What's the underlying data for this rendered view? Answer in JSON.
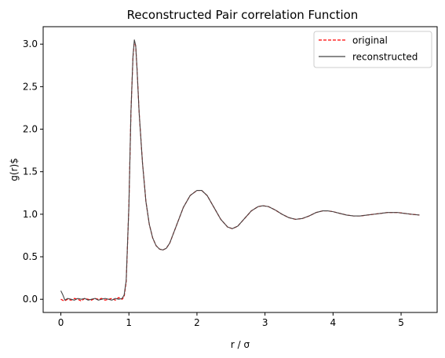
{
  "chart_data": {
    "type": "line",
    "title": "Reconstructed Pair correlation Function",
    "xlabel": "r / σ",
    "ylabel": "g(r)$",
    "xlim": [
      -0.26,
      5.53
    ],
    "ylim": [
      -0.155,
      3.205
    ],
    "xticks": [
      0,
      1,
      2,
      3,
      4,
      5
    ],
    "xtick_labels": [
      "0",
      "1",
      "2",
      "3",
      "4",
      "5"
    ],
    "yticks": [
      0.0,
      0.5,
      1.0,
      1.5,
      2.0,
      2.5,
      3.0
    ],
    "ytick_labels": [
      "0.0",
      "0.5",
      "1.0",
      "1.5",
      "2.0",
      "2.5",
      "3.0"
    ],
    "grid": false,
    "legend_position": "top-right",
    "series": [
      {
        "name": "original",
        "color": "#ff0000",
        "style": "dashed",
        "x": [
          0.0,
          0.05,
          0.1,
          0.15,
          0.2,
          0.25,
          0.3,
          0.35,
          0.4,
          0.45,
          0.5,
          0.55,
          0.6,
          0.65,
          0.7,
          0.75,
          0.8,
          0.85,
          0.9,
          0.93,
          0.96,
          1.0,
          1.03,
          1.06,
          1.08,
          1.1,
          1.12,
          1.15,
          1.2,
          1.25,
          1.3,
          1.35,
          1.4,
          1.45,
          1.5,
          1.55,
          1.6,
          1.7,
          1.8,
          1.9,
          2.0,
          2.07,
          2.15,
          2.25,
          2.35,
          2.45,
          2.52,
          2.6,
          2.7,
          2.8,
          2.9,
          2.97,
          3.05,
          3.15,
          3.25,
          3.35,
          3.45,
          3.55,
          3.65,
          3.75,
          3.85,
          3.92,
          4.0,
          4.1,
          4.2,
          4.3,
          4.4,
          4.5,
          4.6,
          4.7,
          4.8,
          4.88,
          4.95,
          5.05,
          5.15,
          5.27
        ],
        "y": [
          0.0,
          -0.02,
          0.0,
          -0.01,
          0.01,
          0.0,
          -0.02,
          0.01,
          0.0,
          -0.01,
          0.01,
          0.0,
          0.01,
          -0.01,
          0.0,
          0.01,
          -0.01,
          0.02,
          0.0,
          0.03,
          0.2,
          1.1,
          2.2,
          2.85,
          3.04,
          2.98,
          2.7,
          2.2,
          1.6,
          1.15,
          0.88,
          0.72,
          0.63,
          0.59,
          0.58,
          0.6,
          0.66,
          0.87,
          1.08,
          1.22,
          1.28,
          1.28,
          1.22,
          1.08,
          0.94,
          0.85,
          0.83,
          0.86,
          0.95,
          1.04,
          1.09,
          1.1,
          1.09,
          1.05,
          1.0,
          0.96,
          0.94,
          0.95,
          0.98,
          1.02,
          1.04,
          1.04,
          1.03,
          1.01,
          0.99,
          0.98,
          0.98,
          0.99,
          1.0,
          1.01,
          1.02,
          1.02,
          1.02,
          1.01,
          1.0,
          0.99
        ]
      },
      {
        "name": "reconstructed",
        "color": "#444444",
        "style": "solid",
        "x": [
          0.0,
          0.03,
          0.06,
          0.1,
          0.15,
          0.2,
          0.25,
          0.3,
          0.35,
          0.4,
          0.45,
          0.5,
          0.55,
          0.6,
          0.65,
          0.7,
          0.75,
          0.8,
          0.85,
          0.9,
          0.93,
          0.96,
          1.0,
          1.03,
          1.06,
          1.08,
          1.1,
          1.12,
          1.15,
          1.2,
          1.25,
          1.3,
          1.35,
          1.4,
          1.45,
          1.5,
          1.55,
          1.6,
          1.7,
          1.8,
          1.9,
          2.0,
          2.07,
          2.15,
          2.25,
          2.35,
          2.45,
          2.52,
          2.6,
          2.7,
          2.8,
          2.9,
          2.97,
          3.05,
          3.15,
          3.25,
          3.35,
          3.45,
          3.55,
          3.65,
          3.75,
          3.85,
          3.92,
          4.0,
          4.1,
          4.2,
          4.3,
          4.4,
          4.5,
          4.6,
          4.7,
          4.8,
          4.88,
          4.95,
          5.05,
          5.15,
          5.27
        ],
        "y": [
          0.1,
          0.05,
          -0.01,
          0.01,
          0.0,
          -0.01,
          0.01,
          0.0,
          0.01,
          -0.01,
          0.0,
          0.01,
          -0.01,
          0.0,
          0.01,
          0.0,
          -0.01,
          0.01,
          0.0,
          0.01,
          0.05,
          0.22,
          1.1,
          2.2,
          2.86,
          3.05,
          2.98,
          2.7,
          2.2,
          1.6,
          1.15,
          0.88,
          0.72,
          0.63,
          0.59,
          0.58,
          0.6,
          0.66,
          0.87,
          1.08,
          1.22,
          1.28,
          1.28,
          1.22,
          1.08,
          0.94,
          0.85,
          0.83,
          0.86,
          0.95,
          1.04,
          1.09,
          1.1,
          1.09,
          1.05,
          1.0,
          0.96,
          0.94,
          0.95,
          0.98,
          1.02,
          1.04,
          1.04,
          1.03,
          1.01,
          0.99,
          0.98,
          0.98,
          0.99,
          1.0,
          1.01,
          1.02,
          1.02,
          1.02,
          1.01,
          1.0,
          0.99
        ]
      }
    ]
  }
}
